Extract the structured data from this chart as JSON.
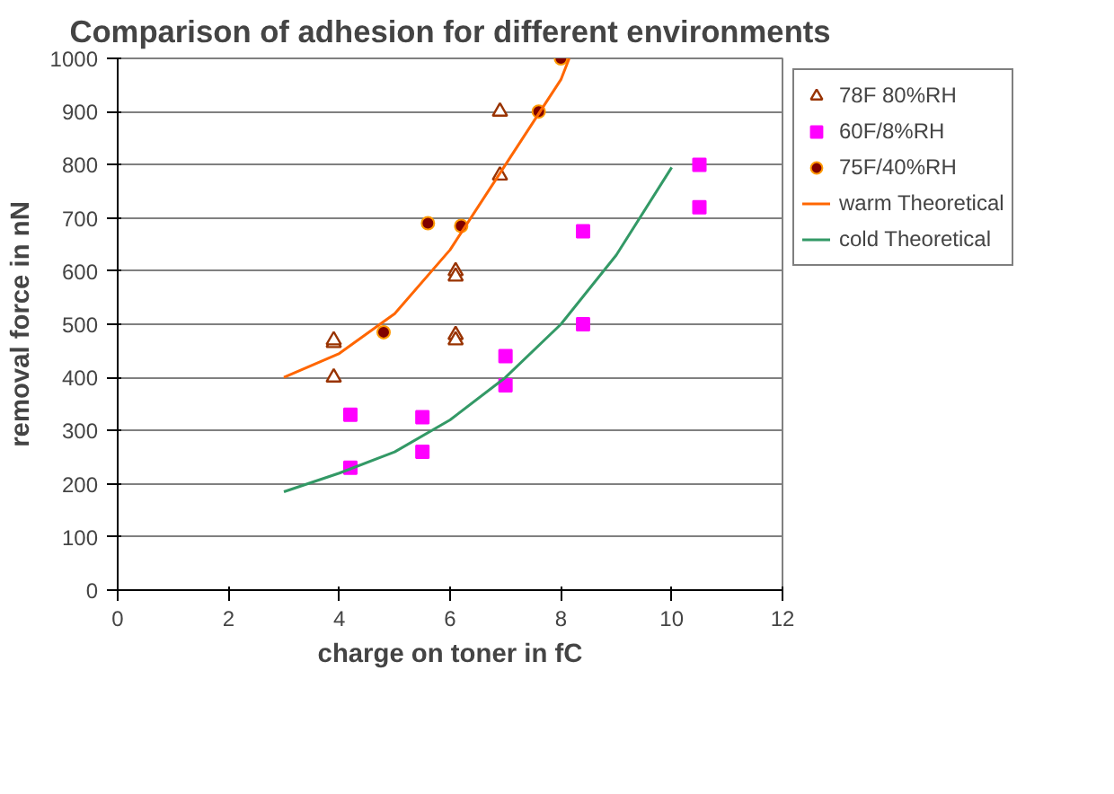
{
  "chart_data": {
    "type": "scatter",
    "title": "Comparison of adhesion for different environments",
    "xlabel": "charge on toner in fC",
    "ylabel": "removal force in nN",
    "xlim": [
      0,
      12
    ],
    "ylim": [
      0,
      1000
    ],
    "xticks": [
      0,
      2,
      4,
      6,
      8,
      10,
      12
    ],
    "yticks": [
      0,
      100,
      200,
      300,
      400,
      500,
      600,
      700,
      800,
      900,
      1000
    ],
    "grid": "y",
    "legend": "right",
    "series": [
      {
        "name": "78F 80%RH",
        "marker": "triangle",
        "color": "#993300",
        "x": [
          3.9,
          3.9,
          3.9,
          6.1,
          6.1,
          6.1,
          6.1,
          6.9,
          6.9
        ],
        "values": [
          465,
          470,
          400,
          600,
          590,
          480,
          470,
          780,
          900
        ]
      },
      {
        "name": "60F/8%RH",
        "marker": "square",
        "color": "#ff00ff",
        "x": [
          4.2,
          4.2,
          5.5,
          5.5,
          7.0,
          7.0,
          8.4,
          8.4,
          10.5,
          10.5
        ],
        "values": [
          330,
          230,
          325,
          260,
          440,
          385,
          675,
          500,
          800,
          720
        ]
      },
      {
        "name": "75F/40%RH",
        "marker": "circle",
        "color": "#800000",
        "x": [
          4.8,
          5.6,
          6.2,
          7.6,
          8.0
        ],
        "values": [
          485,
          690,
          685,
          900,
          1000
        ]
      },
      {
        "name": "warm Theoretical",
        "type": "line",
        "color": "#ff6600",
        "x": [
          3,
          4,
          5,
          6,
          7,
          8,
          8.15
        ],
        "values": [
          400,
          445,
          520,
          640,
          800,
          960,
          1000
        ]
      },
      {
        "name": "cold Theoretical",
        "type": "line",
        "color": "#339966",
        "x": [
          3,
          4,
          5,
          6,
          7,
          8,
          9,
          10
        ],
        "values": [
          185,
          220,
          260,
          320,
          400,
          500,
          630,
          795
        ]
      }
    ]
  }
}
